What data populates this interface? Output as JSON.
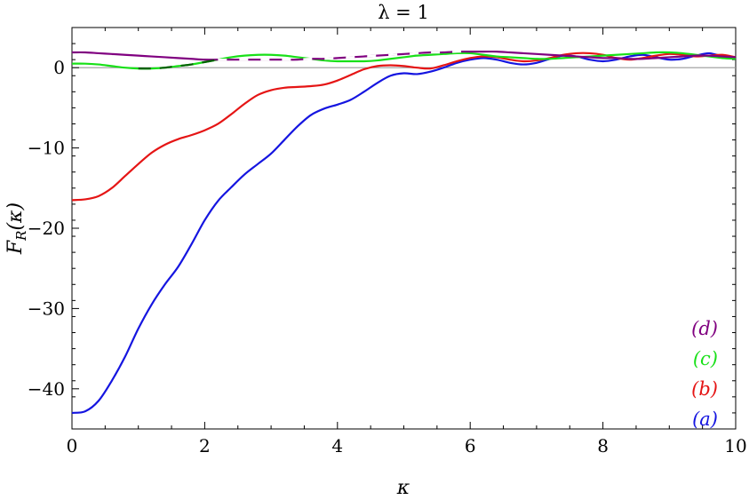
{
  "chart_data": {
    "type": "line",
    "title": "λ = 1",
    "xlabel": "κ",
    "ylabel": "F_R(κ)",
    "ylabel_parts": {
      "main": "F",
      "sub": "R",
      "arg": "(κ)"
    },
    "xlim": [
      0,
      10
    ],
    "ylim": [
      -45,
      5
    ],
    "x_ticks": [
      0,
      2,
      4,
      6,
      8,
      10
    ],
    "x_tick_labels": [
      "0",
      "2",
      "4",
      "6",
      "8",
      "10"
    ],
    "y_ticks": [
      0,
      -10,
      -20,
      -30,
      -40
    ],
    "y_tick_labels": [
      "0",
      "−10",
      "−20",
      "−30",
      "−40"
    ],
    "zero_line": true,
    "grid": false,
    "legend_position": "bottom-right",
    "series": [
      {
        "name": "(a)",
        "legend_label": "(a)",
        "color": "#1515e0",
        "x": [
          0,
          0.2,
          0.4,
          0.6,
          0.8,
          1.0,
          1.2,
          1.4,
          1.6,
          1.8,
          2.0,
          2.2,
          2.4,
          2.6,
          2.8,
          3.0,
          3.2,
          3.4,
          3.6,
          3.8,
          4.0,
          4.2,
          4.4,
          4.6,
          4.8,
          5.0,
          5.2,
          5.4,
          5.6,
          5.8,
          6.0,
          6.2,
          6.4,
          6.6,
          6.8,
          7.0,
          7.2,
          7.4,
          7.6,
          7.8,
          8.0,
          8.2,
          8.4,
          8.6,
          8.8,
          9.0,
          9.2,
          9.4,
          9.6,
          9.8,
          10.0
        ],
        "y": [
          -43.0,
          -42.8,
          -41.5,
          -39.0,
          -36.0,
          -32.5,
          -29.5,
          -27.0,
          -24.8,
          -22.0,
          -19.0,
          -16.6,
          -14.9,
          -13.3,
          -12.0,
          -10.7,
          -9.0,
          -7.3,
          -5.9,
          -5.1,
          -4.6,
          -4.0,
          -3.0,
          -1.9,
          -1.0,
          -0.7,
          -0.8,
          -0.5,
          0.0,
          0.6,
          1.0,
          1.2,
          1.0,
          0.6,
          0.4,
          0.6,
          1.1,
          1.5,
          1.4,
          1.0,
          0.8,
          1.0,
          1.4,
          1.6,
          1.3,
          1.0,
          1.1,
          1.5,
          1.8,
          1.4,
          1.1
        ]
      },
      {
        "name": "(b)",
        "legend_label": "(b)",
        "color": "#e51515",
        "x": [
          0,
          0.2,
          0.4,
          0.6,
          0.8,
          1.0,
          1.2,
          1.4,
          1.6,
          1.8,
          2.0,
          2.2,
          2.4,
          2.6,
          2.8,
          3.0,
          3.2,
          3.4,
          3.6,
          3.8,
          4.0,
          4.2,
          4.4,
          4.6,
          4.8,
          5.0,
          5.2,
          5.4,
          5.6,
          5.8,
          6.0,
          6.2,
          6.4,
          6.6,
          6.8,
          7.0,
          7.2,
          7.4,
          7.6,
          7.8,
          8.0,
          8.2,
          8.4,
          8.6,
          8.8,
          9.0,
          9.2,
          9.4,
          9.6,
          9.8,
          10.0
        ],
        "y": [
          -16.5,
          -16.4,
          -16.0,
          -15.0,
          -13.5,
          -12.0,
          -10.6,
          -9.6,
          -8.9,
          -8.4,
          -7.8,
          -7.0,
          -5.8,
          -4.5,
          -3.4,
          -2.8,
          -2.5,
          -2.4,
          -2.3,
          -2.1,
          -1.6,
          -0.9,
          -0.2,
          0.2,
          0.3,
          0.2,
          0.0,
          -0.1,
          0.3,
          0.8,
          1.2,
          1.4,
          1.3,
          1.0,
          0.8,
          0.9,
          1.2,
          1.6,
          1.8,
          1.8,
          1.6,
          1.2,
          1.0,
          1.2,
          1.5,
          1.7,
          1.6,
          1.4,
          1.5,
          1.6,
          1.3
        ]
      },
      {
        "name": "(c)",
        "legend_label": "(c)",
        "color": "#18e018",
        "x": [
          0,
          0.2,
          0.4,
          0.6,
          0.8,
          1.0,
          1.2,
          1.4,
          1.6,
          1.8,
          2.0,
          2.2,
          2.4,
          2.6,
          2.8,
          3.0,
          3.2,
          3.4,
          3.6,
          3.8,
          4.0,
          4.2,
          4.4,
          4.6,
          4.8,
          5.0,
          5.2,
          5.4,
          5.6,
          5.8,
          6.0,
          6.2,
          6.4,
          6.6,
          6.8,
          7.0,
          7.2,
          7.4,
          7.6,
          7.8,
          8.0,
          8.2,
          8.4,
          8.6,
          8.8,
          9.0,
          9.2,
          9.4,
          9.6,
          9.8,
          10.0
        ],
        "y": [
          0.5,
          0.5,
          0.4,
          0.2,
          0.0,
          -0.1,
          -0.1,
          0.0,
          0.2,
          0.4,
          0.7,
          1.0,
          1.3,
          1.5,
          1.6,
          1.6,
          1.5,
          1.3,
          1.1,
          0.9,
          0.8,
          0.8,
          0.8,
          0.9,
          1.1,
          1.3,
          1.5,
          1.6,
          1.7,
          1.8,
          1.8,
          1.6,
          1.4,
          1.3,
          1.2,
          1.1,
          1.1,
          1.2,
          1.3,
          1.4,
          1.5,
          1.6,
          1.7,
          1.8,
          1.9,
          1.9,
          1.8,
          1.6,
          1.4,
          1.2,
          1.1
        ]
      },
      {
        "name": "(d)",
        "legend_label": "(d)",
        "color": "#800080",
        "x": [
          0,
          0.2,
          0.4,
          0.6,
          0.8,
          1.0,
          1.2,
          1.4,
          1.6,
          1.8,
          2.0,
          2.2,
          2.4,
          2.6,
          2.8,
          3.0,
          3.2,
          3.4,
          3.6,
          3.8,
          4.0,
          4.2,
          4.4,
          4.6,
          4.8,
          5.0,
          5.2,
          5.4,
          5.6,
          5.8,
          6.0,
          6.2,
          6.4,
          6.6,
          6.8,
          7.0,
          7.2,
          7.4,
          7.6,
          7.8,
          8.0,
          8.2,
          8.4,
          8.6,
          8.8,
          9.0,
          9.2,
          9.4,
          9.6,
          9.8,
          10.0
        ],
        "y": [
          1.9,
          1.9,
          1.8,
          1.7,
          1.6,
          1.5,
          1.4,
          1.3,
          1.2,
          1.1,
          1.0,
          1.0,
          1.0,
          1.0,
          1.0,
          1.0,
          1.0,
          1.0,
          1.1,
          1.1,
          1.2,
          1.3,
          1.4,
          1.5,
          1.6,
          1.7,
          1.8,
          1.9,
          1.9,
          2.0,
          2.0,
          2.0,
          2.0,
          1.9,
          1.8,
          1.7,
          1.6,
          1.5,
          1.4,
          1.3,
          1.2,
          1.2,
          1.1,
          1.1,
          1.2,
          1.3,
          1.4,
          1.5,
          1.5,
          1.4,
          1.3
        ]
      }
    ],
    "overlay": {
      "note_color": "#006000",
      "dash_color": "#ffffff",
      "green_segment_x": [
        0.9,
        2.2
      ],
      "purple_dashed_x": [
        2.2,
        6.0
      ]
    }
  }
}
